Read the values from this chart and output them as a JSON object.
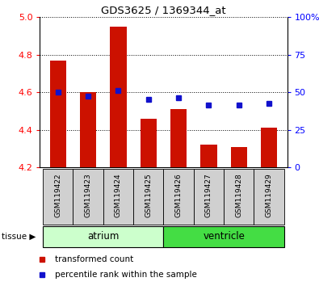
{
  "title": "GDS3625 / 1369344_at",
  "samples": [
    "GSM119422",
    "GSM119423",
    "GSM119424",
    "GSM119425",
    "GSM119426",
    "GSM119427",
    "GSM119428",
    "GSM119429"
  ],
  "red_values": [
    4.77,
    4.6,
    4.95,
    4.46,
    4.51,
    4.32,
    4.31,
    4.41
  ],
  "blue_values": [
    4.6,
    4.58,
    4.61,
    4.56,
    4.57,
    4.53,
    4.53,
    4.54
  ],
  "ylim_left": [
    4.2,
    5.0
  ],
  "ylim_right": [
    0,
    100
  ],
  "yticks_left": [
    4.2,
    4.4,
    4.6,
    4.8,
    5.0
  ],
  "yticks_right": [
    0,
    25,
    50,
    75,
    100
  ],
  "ytick_labels_right": [
    "0",
    "25",
    "50",
    "75",
    "100%"
  ],
  "bar_color": "#cc1100",
  "square_color": "#1111cc",
  "bar_bottom": 4.2,
  "groups": [
    {
      "label": "atrium",
      "start": 0,
      "end": 4,
      "color": "#ccffcc"
    },
    {
      "label": "ventricle",
      "start": 4,
      "end": 8,
      "color": "#44dd44"
    }
  ],
  "tissue_label": "tissue",
  "legend_items": [
    "transformed count",
    "percentile rank within the sample"
  ],
  "label_bg_color": "#d0d0d0"
}
